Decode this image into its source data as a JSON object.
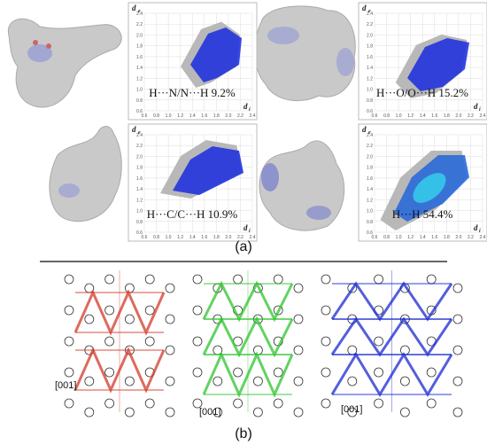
{
  "figure": {
    "panel_a": {
      "label": "(a)",
      "plots": [
        {
          "label": "H···N/N···H 9.2%"
        },
        {
          "label": "H···O/O···H 15.2%"
        },
        {
          "label": "H···C/C···H 10.9%"
        },
        {
          "label": "H···H 54.4%"
        }
      ]
    },
    "panel_b": {
      "label": "(b)",
      "views": [
        {
          "label": "[001]"
        },
        {
          "label": "[001]"
        },
        {
          "label": "[001]"
        }
      ]
    }
  },
  "plot_axes": {
    "y_label": "d",
    "y_sub": "e",
    "x_label": "d",
    "x_sub": "i",
    "x_ticks": [
      "0.6",
      "0.8",
      "1.0",
      "1.2",
      "1.4",
      "1.6",
      "1.8",
      "2.0",
      "2.2",
      "2.4"
    ],
    "y_ticks": [
      "2.4",
      "2.2",
      "2.0",
      "1.8",
      "1.6",
      "1.4",
      "1.2",
      "1.0",
      "0.8",
      "0.6"
    ]
  }
}
